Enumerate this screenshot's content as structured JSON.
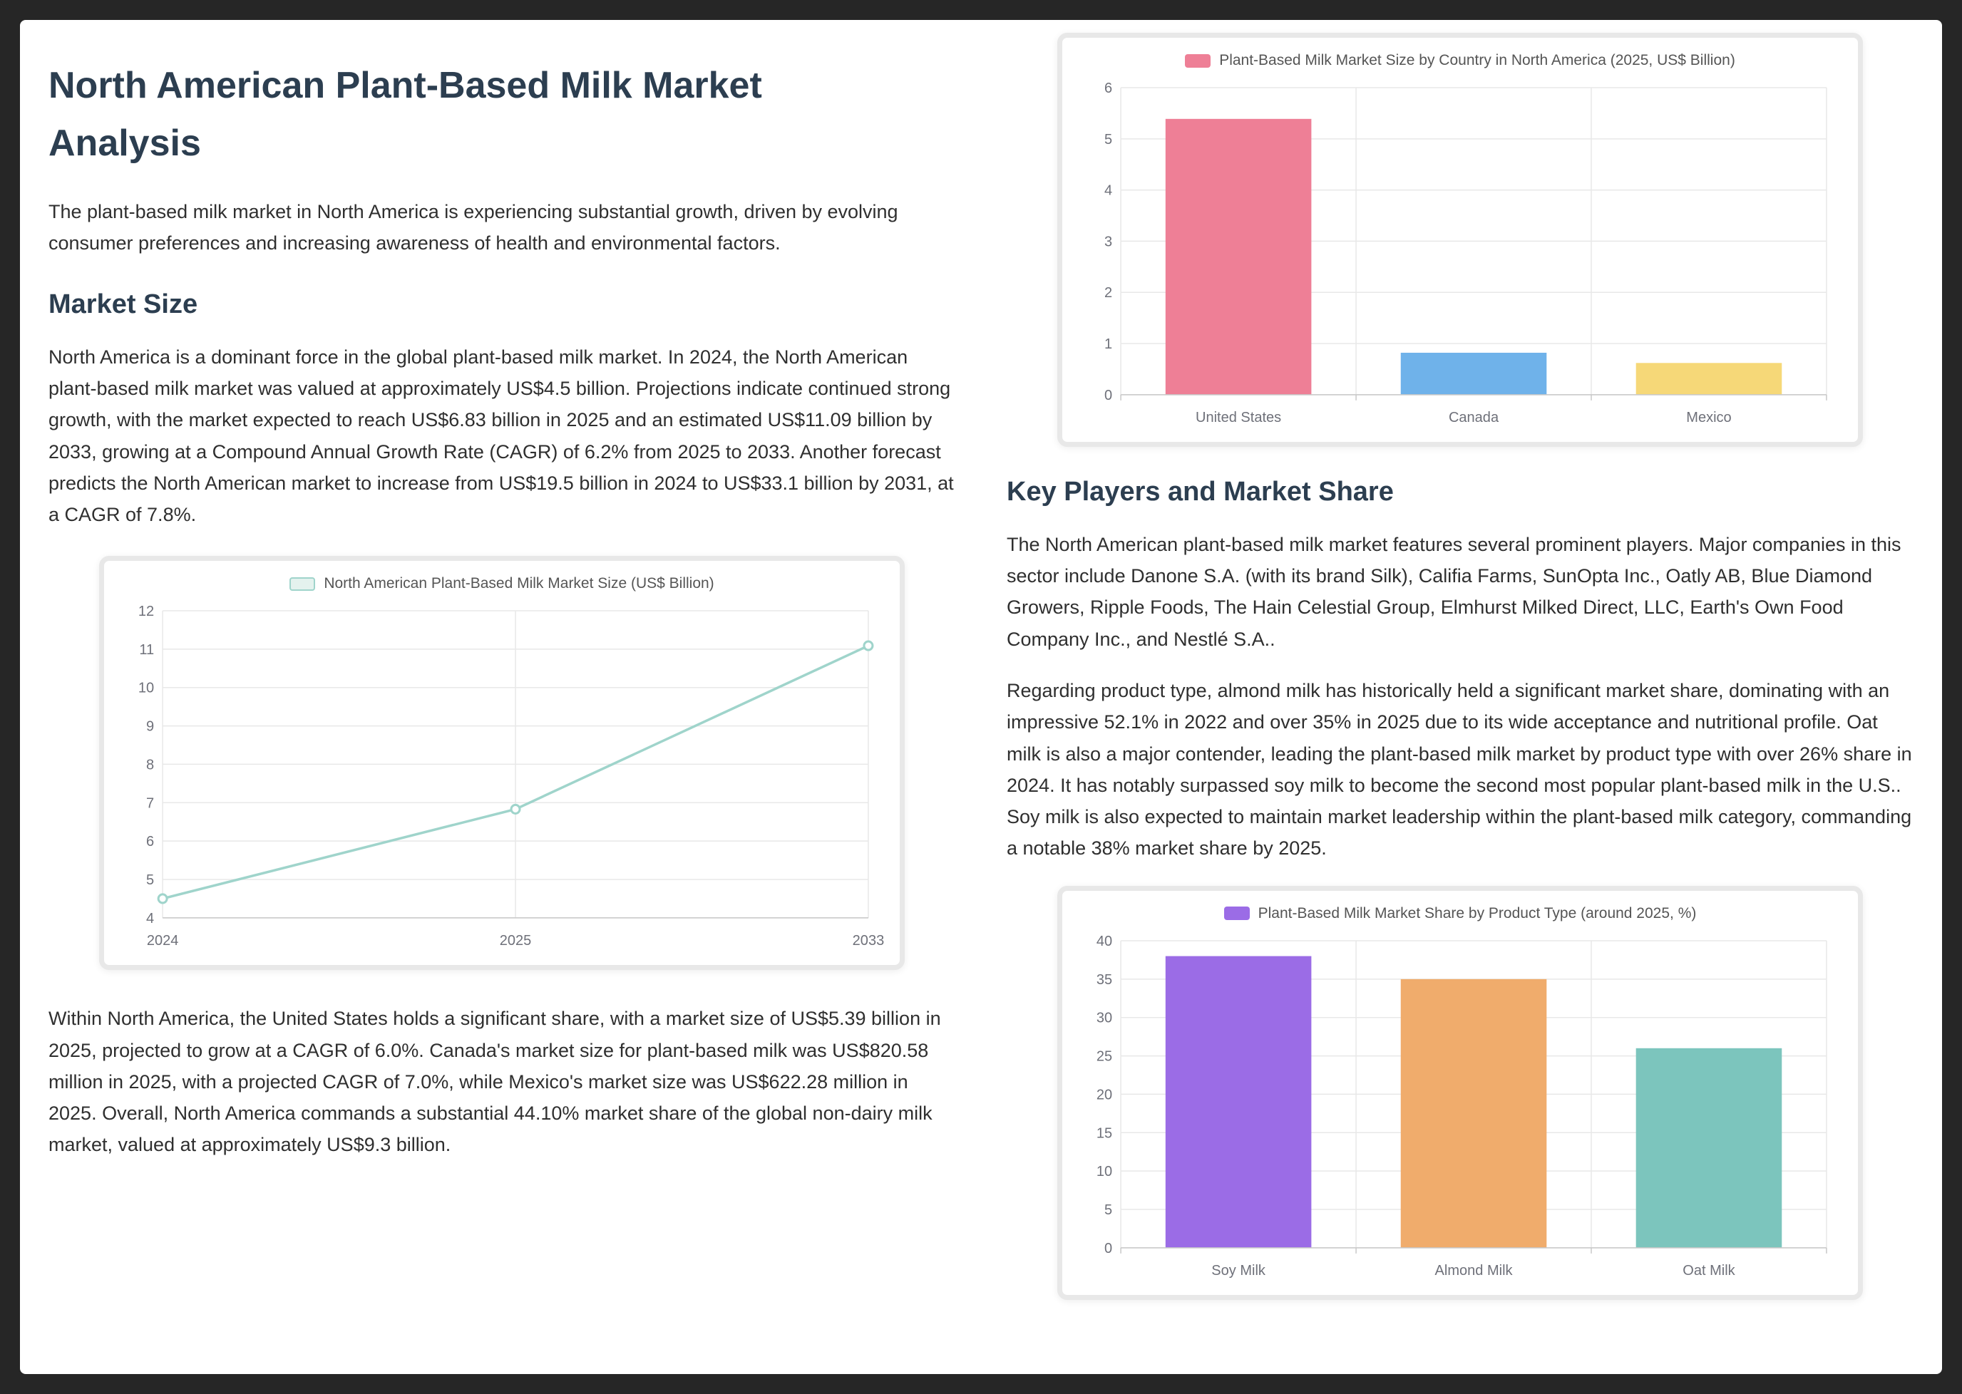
{
  "page": {
    "title": "North American Plant-Based Milk Market Analysis",
    "intro": "The plant-based milk market in North America is experiencing substantial growth, driven by evolving consumer preferences and increasing awareness of health and environmental factors."
  },
  "sections": {
    "market_size": {
      "heading": "Market Size",
      "para1": "North America is a dominant force in the global plant-based milk market. In 2024, the North American plant-based milk market was valued at approximately US$4.5 billion. Projections indicate continued strong growth, with the market expected to reach US$6.83 billion in 2025 and an estimated US$11.09 billion by 2033, growing at a Compound Annual Growth Rate (CAGR) of 6.2% from 2025 to 2033. Another forecast predicts the North American market to increase from US$19.5 billion in 2024 to US$33.1 billion by 2031, at a CAGR of 7.8%.",
      "para2": "Within North America, the United States holds a significant share, with a market size of US$5.39 billion in 2025, projected to grow at a CAGR of 6.0%. Canada's market size for plant-based milk was US$820.58 million in 2025, with a projected CAGR of 7.0%, while Mexico's market size was US$622.28 million in 2025. Overall, North America commands a substantial 44.10% market share of the global non-dairy milk market, valued at approximately US$9.3 billion."
    },
    "key_players": {
      "heading": "Key Players and Market Share",
      "para1": "The North American plant-based milk market features several prominent players. Major companies in this sector include Danone S.A. (with its brand Silk), Califia Farms, SunOpta Inc., Oatly AB, Blue Diamond Growers, Ripple Foods, The Hain Celestial Group, Elmhurst Milked Direct, LLC, Earth's Own Food Company Inc., and Nestlé S.A..",
      "para2": "Regarding product type, almond milk has historically held a significant market share, dominating with an impressive 52.1% in 2022 and over 35% in 2025 due to its wide acceptance and nutritional profile. Oat milk is also a major contender, leading the plant-based milk market by product type with over 26% share in 2024. It has notably surpassed soy milk to become the second most popular plant-based milk in the U.S.. Soy milk is also expected to maintain market leadership within the plant-based milk category, commanding a notable 38% market share by 2025."
    }
  },
  "theme": {
    "heading_color": "#2c3e50",
    "body_text_color": "#2f2f2f",
    "page_background": "#ffffff",
    "frame_background": "#262626"
  },
  "chart_data": [
    {
      "id": "line-market-size",
      "type": "line",
      "title": "North American Plant-Based Milk Market Size (US$ Billion)",
      "categories": [
        "2024",
        "2025",
        "2033"
      ],
      "values": [
        4.5,
        6.83,
        11.09
      ],
      "xlabel": "",
      "ylabel": "US$ Billion",
      "ylim": [
        4,
        12
      ],
      "ytick": 1,
      "line_color": "#9fd4cb",
      "grid": true,
      "legend_position": "top"
    },
    {
      "id": "bar-country",
      "type": "bar",
      "title": "Plant-Based Milk Market Size by Country in North America (2025, US$ Billion)",
      "categories": [
        "United States",
        "Canada",
        "Mexico"
      ],
      "values": [
        5.39,
        0.82,
        0.62
      ],
      "bar_colors": [
        "#ee7f96",
        "#6fb2ea",
        "#f6d878"
      ],
      "legend_color": "#ee7f96",
      "xlabel": "",
      "ylabel": "US$ Billion",
      "ylim": [
        0,
        6
      ],
      "ytick": 1,
      "grid": true,
      "legend_position": "top"
    },
    {
      "id": "bar-product",
      "type": "bar",
      "title": "Plant-Based Milk Market Share by Product Type (around 2025, %)",
      "categories": [
        "Soy Milk",
        "Almond Milk",
        "Oat Milk"
      ],
      "values": [
        38,
        35,
        26
      ],
      "bar_colors": [
        "#9b6ce6",
        "#f0ac6c",
        "#7cc5bd"
      ],
      "legend_color": "#9b6ce6",
      "xlabel": "",
      "ylabel": "%",
      "ylim": [
        0,
        40
      ],
      "ytick": 5,
      "grid": true,
      "legend_position": "top"
    }
  ]
}
